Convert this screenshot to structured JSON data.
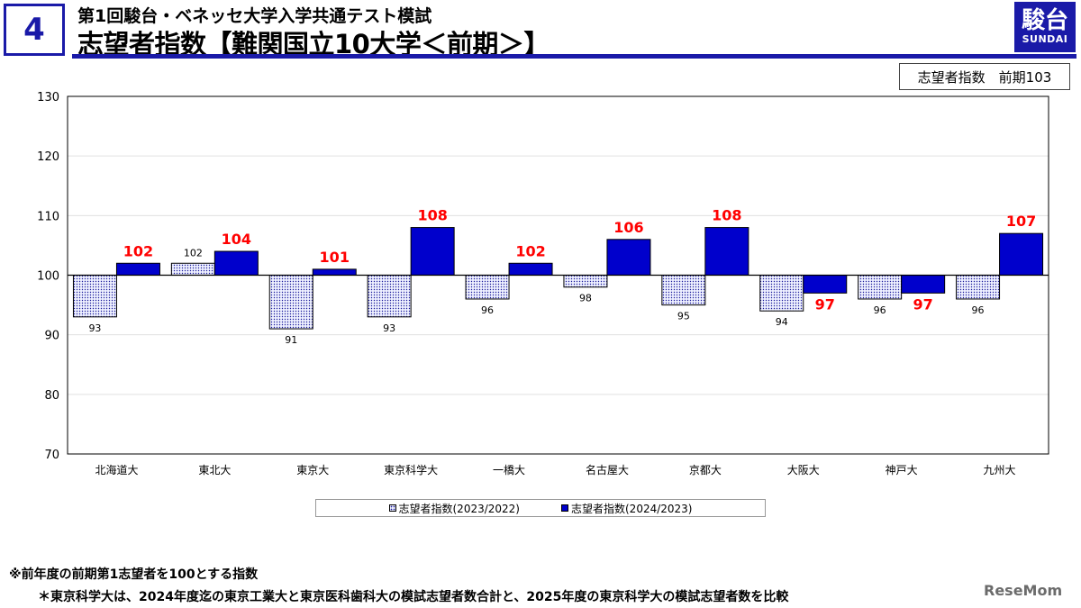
{
  "header": {
    "slide_number": "4",
    "subtitle": "第1回駿台・ベネッセ大学入学共通テスト模試",
    "title": "志望者指数【難関国立10大学＜前期＞】",
    "logo_main": "駿台",
    "logo_sub": "SUNDAI"
  },
  "summary": {
    "label": "志望者指数　前期103"
  },
  "chart_data": {
    "type": "bar",
    "baseline": 100,
    "ylim": [
      70,
      130
    ],
    "yticks": [
      70,
      80,
      90,
      100,
      110,
      120,
      130
    ],
    "grid": true,
    "legend": "bottom",
    "categories": [
      "北海道大",
      "東北大",
      "東京大",
      "東京科学大",
      "一橋大",
      "名古屋大",
      "京都大",
      "大阪大",
      "神戸大",
      "九州大"
    ],
    "series": [
      {
        "name": "志望者指数(2023/2022)",
        "values": [
          93,
          102,
          91,
          93,
          96,
          98,
          95,
          94,
          96,
          96
        ],
        "labels": [
          "93",
          "102",
          "91",
          "93",
          "96",
          "98",
          "95",
          "94",
          "96",
          "96"
        ],
        "style": "dotted",
        "label_color": "#000000"
      },
      {
        "name": "志望者指数(2024/2023)",
        "values": [
          102,
          104,
          101,
          108,
          102,
          106,
          108,
          97,
          97,
          107
        ],
        "labels": [
          "102",
          "104",
          "101",
          "108",
          "102",
          "106",
          "108",
          "97",
          "97",
          "107"
        ],
        "style": "solid",
        "color": "#0000cc",
        "label_color": "#ff0000"
      }
    ]
  },
  "legend": {
    "item1": "志望者指数(2023/2022)",
    "item2": "志望者指数(2024/2023)"
  },
  "notes": {
    "note1": "※前年度の前期第1志望者を100とする指数",
    "note2": "＊東京科学大は、2024年度迄の東京工業大と東京医科歯科大の模試志望者数合計と、2025年度の東京科学大の模試志望者数を比較"
  },
  "watermark": "ReseMom",
  "colors": {
    "accent": "#1a1aa8",
    "bar_solid": "#0000cc",
    "label_red": "#ff0000"
  }
}
